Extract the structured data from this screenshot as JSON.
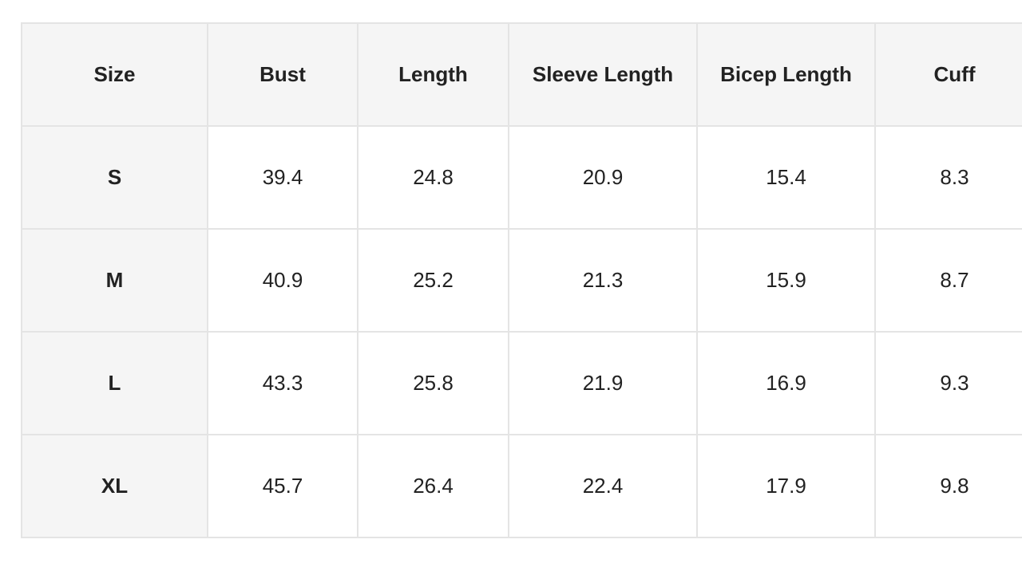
{
  "table": {
    "headers": [
      "Size",
      "Bust",
      "Length",
      "Sleeve Length",
      "Bicep Length",
      "Cuff"
    ],
    "rows": [
      [
        "S",
        "39.4",
        "24.8",
        "20.9",
        "15.4",
        "8.3"
      ],
      [
        "M",
        "40.9",
        "25.2",
        "21.3",
        "15.9",
        "8.7"
      ],
      [
        "L",
        "43.3",
        "25.8",
        "21.9",
        "16.9",
        "9.3"
      ],
      [
        "XL",
        "45.7",
        "26.4",
        "22.4",
        "17.9",
        "9.8"
      ]
    ]
  },
  "colors": {
    "header_bg": "#f5f5f5",
    "border": "#e4e4e4",
    "text": "#222222"
  }
}
